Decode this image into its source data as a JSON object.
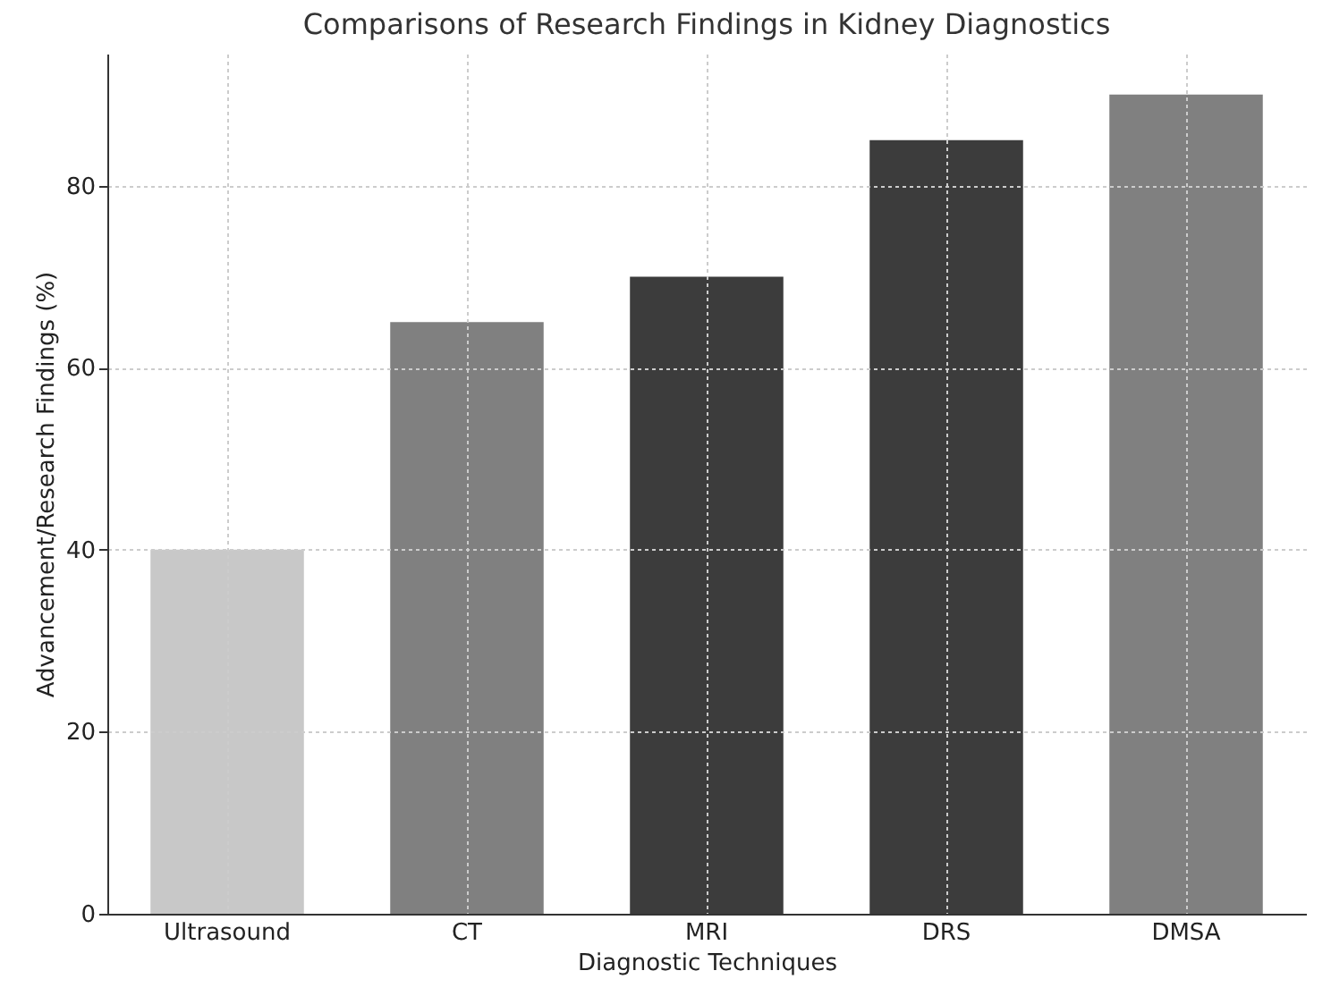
{
  "chart_data": {
    "type": "bar",
    "title": "Comparisons of Research Findings in Kidney Diagnostics",
    "xlabel": "Diagnostic Techniques",
    "ylabel": "Advancement/Research Findings (%)",
    "categories": [
      "Ultrasound",
      "CT",
      "MRI",
      "DRS",
      "DMSA"
    ],
    "values": [
      40,
      65,
      70,
      85,
      90
    ],
    "colors": [
      "#c8c8c8",
      "#808080",
      "#3c3c3c",
      "#3c3c3c",
      "#808080"
    ],
    "ylim": [
      0,
      94.5
    ],
    "yticks": [
      0,
      20,
      40,
      60,
      80
    ],
    "grid": true
  }
}
